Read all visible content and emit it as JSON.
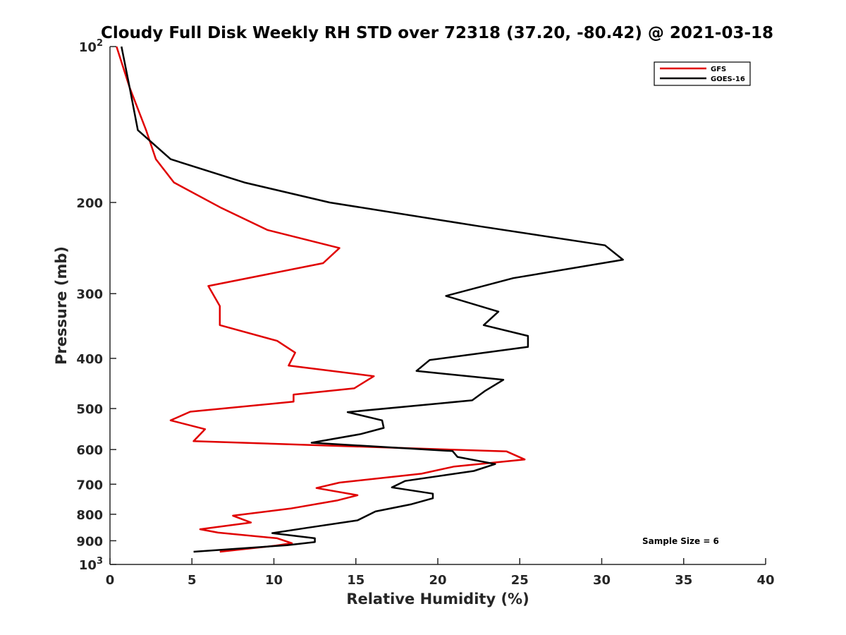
{
  "chart_data": {
    "type": "line",
    "title": "Cloudy Full Disk Weekly RH STD over 72318 (37.20, -80.42) @ 2021-03-18",
    "xlabel": "Relative Humidity (%)",
    "ylabel": "Pressure (mb)",
    "xlim": [
      0,
      40
    ],
    "ylim": [
      100,
      1000
    ],
    "yscale": "log",
    "y_reversed": true,
    "grid": false,
    "legend_position": "top-right",
    "x_ticks": [
      0,
      5,
      10,
      15,
      20,
      25,
      30,
      35,
      40
    ],
    "x_tick_labels": [
      "0",
      "5",
      "10",
      "15",
      "20",
      "25",
      "30",
      "35",
      "40"
    ],
    "y_ticks": [
      100,
      200,
      300,
      400,
      500,
      600,
      700,
      800,
      900,
      1000
    ],
    "y_tick_labels": [
      {
        "base": "10",
        "exp": "2"
      },
      {
        "base": "200",
        "exp": ""
      },
      {
        "base": "300",
        "exp": ""
      },
      {
        "base": "400",
        "exp": ""
      },
      {
        "base": "500",
        "exp": ""
      },
      {
        "base": "600",
        "exp": ""
      },
      {
        "base": "700",
        "exp": ""
      },
      {
        "base": "800",
        "exp": ""
      },
      {
        "base": "900",
        "exp": ""
      },
      {
        "base": "10",
        "exp": "3"
      }
    ],
    "annotation": "Sample Size = 6",
    "series": [
      {
        "name": "GFS",
        "color": "#e00000",
        "points": [
          [
            0.4,
            100
          ],
          [
            1.2,
            120
          ],
          [
            2.2,
            145
          ],
          [
            2.8,
            165
          ],
          [
            3.9,
            183
          ],
          [
            6.8,
            205
          ],
          [
            9.6,
            226
          ],
          [
            14.0,
            245
          ],
          [
            13.0,
            262
          ],
          [
            6.0,
            290
          ],
          [
            6.7,
            317
          ],
          [
            6.7,
            345
          ],
          [
            10.2,
            370
          ],
          [
            11.3,
            390
          ],
          [
            10.9,
            413
          ],
          [
            16.1,
            433
          ],
          [
            14.9,
            457
          ],
          [
            11.2,
            470
          ],
          [
            11.2,
            485
          ],
          [
            4.9,
            507
          ],
          [
            3.7,
            527
          ],
          [
            5.8,
            548
          ],
          [
            5.1,
            578
          ],
          [
            24.2,
            605
          ],
          [
            25.3,
            627
          ],
          [
            21.0,
            647
          ],
          [
            19.0,
            668
          ],
          [
            14.0,
            695
          ],
          [
            12.6,
            712
          ],
          [
            15.1,
            735
          ],
          [
            13.9,
            752
          ],
          [
            11.0,
            780
          ],
          [
            7.5,
            805
          ],
          [
            8.6,
            830
          ],
          [
            5.5,
            855
          ],
          [
            6.6,
            868
          ],
          [
            10.2,
            890
          ],
          [
            11.1,
            910
          ],
          [
            10.1,
            920
          ],
          [
            6.7,
            945
          ]
        ]
      },
      {
        "name": "GOES-16",
        "color": "#000000",
        "points": [
          [
            0.7,
            100
          ],
          [
            1.2,
            120
          ],
          [
            1.7,
            145
          ],
          [
            3.7,
            165
          ],
          [
            8.2,
            183
          ],
          [
            13.4,
            200
          ],
          [
            22.4,
            222
          ],
          [
            30.2,
            242
          ],
          [
            31.3,
            258
          ],
          [
            24.6,
            280
          ],
          [
            20.5,
            303
          ],
          [
            23.7,
            325
          ],
          [
            22.8,
            345
          ],
          [
            25.5,
            362
          ],
          [
            25.5,
            380
          ],
          [
            19.5,
            403
          ],
          [
            18.7,
            423
          ],
          [
            24.0,
            440
          ],
          [
            22.9,
            462
          ],
          [
            22.1,
            482
          ],
          [
            14.5,
            508
          ],
          [
            16.6,
            527
          ],
          [
            16.7,
            545
          ],
          [
            15.3,
            560
          ],
          [
            12.3,
            582
          ],
          [
            20.9,
            604
          ],
          [
            21.2,
            620
          ],
          [
            23.5,
            640
          ],
          [
            22.2,
            660
          ],
          [
            18.0,
            690
          ],
          [
            17.2,
            710
          ],
          [
            19.7,
            730
          ],
          [
            19.7,
            745
          ],
          [
            18.4,
            765
          ],
          [
            16.2,
            790
          ],
          [
            15.1,
            822
          ],
          [
            12.0,
            850
          ],
          [
            9.9,
            870
          ],
          [
            12.5,
            890
          ],
          [
            12.5,
            905
          ],
          [
            10.8,
            918
          ],
          [
            5.1,
            945
          ]
        ]
      }
    ]
  }
}
